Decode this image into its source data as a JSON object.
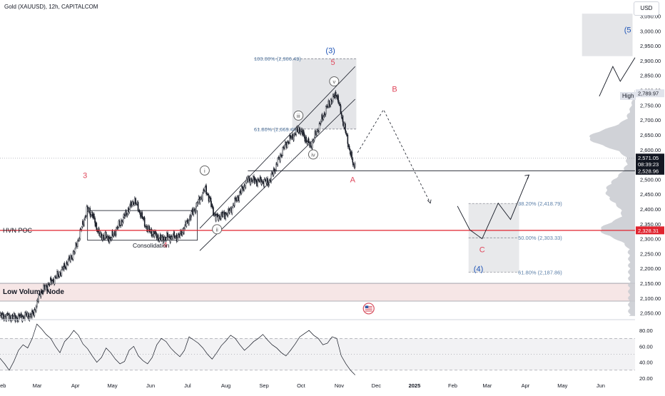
{
  "header": {
    "symbol_title": "Gold (XAUUSD), 12h, CAPITALCOM",
    "currency_button": "USD"
  },
  "labels": {
    "hvn_poc": "HVN POC",
    "low_volume_node": "Low Volume Node",
    "consolidation": "Consolidation",
    "high": "High"
  },
  "chart_data": [
    {
      "type": "candlestick",
      "title": "Gold (XAUUSD), 12h, CAPITALCOM",
      "currency": "USD",
      "x_axis": {
        "type": "date",
        "range": [
          "2024-02-01",
          "2025-06-30"
        ]
      },
      "x_ticks": [
        "Feb",
        "Mar",
        "Apr",
        "May",
        "Jun",
        "Jul",
        "Aug",
        "Sep",
        "Oct",
        "Nov",
        "Dec",
        "2025",
        "Feb",
        "Mar",
        "Apr",
        "May",
        "Jun"
      ],
      "y_ticks": [
        "3,050.00",
        "3,000.00",
        "2,950.00",
        "2,900.00",
        "2,850.00",
        "2,800.00",
        "2,750.00",
        "2,700.00",
        "2,650.00",
        "2,600.00",
        "2,550.00",
        "2,500.00",
        "2,450.00",
        "2,400.00",
        "2,350.00",
        "2,300.00",
        "2,250.00",
        "2,200.00",
        "2,150.00",
        "2,100.00",
        "2,050.00"
      ],
      "ylim": [
        2030,
        3080
      ],
      "grid": false,
      "price_path": [
        {
          "date": "2024-02-01",
          "price": 2040
        },
        {
          "date": "2024-02-15",
          "price": 2035
        },
        {
          "date": "2024-02-28",
          "price": 2045
        },
        {
          "date": "2024-03-05",
          "price": 2120
        },
        {
          "date": "2024-03-20",
          "price": 2180
        },
        {
          "date": "2024-04-01",
          "price": 2250
        },
        {
          "date": "2024-04-12",
          "price": 2400
        },
        {
          "date": "2024-04-16",
          "price": 2380
        },
        {
          "date": "2024-04-22",
          "price": 2310
        },
        {
          "date": "2024-05-01",
          "price": 2300
        },
        {
          "date": "2024-05-10",
          "price": 2360
        },
        {
          "date": "2024-05-20",
          "price": 2430
        },
        {
          "date": "2024-05-31",
          "price": 2330
        },
        {
          "date": "2024-06-10",
          "price": 2300
        },
        {
          "date": "2024-06-26",
          "price": 2310
        },
        {
          "date": "2024-07-17",
          "price": 2470
        },
        {
          "date": "2024-07-25",
          "price": 2370
        },
        {
          "date": "2024-08-05",
          "price": 2390
        },
        {
          "date": "2024-08-20",
          "price": 2500
        },
        {
          "date": "2024-09-06",
          "price": 2490
        },
        {
          "date": "2024-09-20",
          "price": 2620
        },
        {
          "date": "2024-10-01",
          "price": 2670
        },
        {
          "date": "2024-10-10",
          "price": 2610
        },
        {
          "date": "2024-10-23",
          "price": 2740
        },
        {
          "date": "2024-10-31",
          "price": 2790
        },
        {
          "date": "2024-11-05",
          "price": 2700
        },
        {
          "date": "2024-11-14",
          "price": 2540
        },
        {
          "date": "2024-11-15",
          "price": 2565
        }
      ],
      "last_price": "2,571.05",
      "countdown": "08:39:23",
      "horizontal_levels": [
        {
          "name": "HVN POC",
          "price": "2,328.31",
          "color": "#e0242f"
        },
        {
          "name": "support",
          "price": "2,528.96",
          "color": "#131722"
        },
        {
          "name": "High",
          "price": "2,789.97",
          "color": "#131722"
        }
      ],
      "low_volume_node_zone": [
        2090,
        2150
      ],
      "fib_levels": [
        {
          "label": "100.00% (2,906.49)",
          "price": 2906.49
        },
        {
          "label": "61.80% (2,669.46)",
          "price": 2669.46
        },
        {
          "label": "38.20% (2,418.79)",
          "price": 2418.79
        },
        {
          "label": "50.00% (2,303.33)",
          "price": 2303.33
        },
        {
          "label": "61.80% (2,187.86)",
          "price": 2187.86
        }
      ],
      "wave_labels": [
        {
          "text": "3",
          "color": "#e0475b"
        },
        {
          "text": "4",
          "color": "#e0475b"
        },
        {
          "text": "5",
          "color": "#e0475b"
        },
        {
          "text": "(3)",
          "color": "#1e54b7"
        },
        {
          "text": "(4)",
          "color": "#1e54b7"
        },
        {
          "text": "(5",
          "color": "#1e54b7"
        },
        {
          "text": "A",
          "color": "#e0475b"
        },
        {
          "text": "B",
          "color": "#e0475b"
        },
        {
          "text": "C",
          "color": "#e0475b"
        },
        {
          "text": "i",
          "color": "#555555"
        },
        {
          "text": "ii",
          "color": "#555555"
        },
        {
          "text": "iii",
          "color": "#555555"
        },
        {
          "text": "iv",
          "color": "#555555"
        },
        {
          "text": "v",
          "color": "#555555"
        }
      ],
      "projection_path": [
        {
          "date": "2024-11-17",
          "price": 2590
        },
        {
          "date": "2024-12-08",
          "price": 2735
        },
        {
          "date": "2025-01-15",
          "price": 2420
        }
      ],
      "zigzag_path": [
        {
          "date": "2025-02-06",
          "price": 2410
        },
        {
          "date": "2025-02-16",
          "price": 2330
        },
        {
          "date": "2025-02-26",
          "price": 2300
        },
        {
          "date": "2025-03-11",
          "price": 2420
        },
        {
          "date": "2025-03-21",
          "price": 2365
        },
        {
          "date": "2025-04-05",
          "price": 2515
        }
      ],
      "upper_zigzag_path": [
        {
          "date": "2025-06-01",
          "price": 2780
        },
        {
          "date": "2025-06-12",
          "price": 2880
        },
        {
          "date": "2025-06-18",
          "price": 2830
        },
        {
          "date": "2025-06-30",
          "price": 2910
        }
      ]
    },
    {
      "type": "line",
      "title": "",
      "y_ticks": [
        "80.00",
        "60.00",
        "40.00",
        "20.00"
      ],
      "ylim": [
        20,
        90
      ],
      "band": [
        30,
        70
      ],
      "values": [
        45,
        38,
        30,
        41,
        55,
        62,
        58,
        70,
        88,
        82,
        75,
        70,
        60,
        52,
        66,
        72,
        80,
        74,
        63,
        57,
        48,
        40,
        46,
        58,
        52,
        44,
        38,
        41,
        55,
        60,
        48,
        42,
        38,
        46,
        62,
        70,
        66,
        58,
        52,
        47,
        55,
        72,
        68,
        64,
        58,
        50,
        44,
        52,
        61,
        67,
        74,
        70,
        62,
        55,
        60,
        66,
        70,
        75,
        68,
        62,
        58,
        52,
        48,
        55,
        63,
        72,
        76,
        80,
        74,
        70,
        62,
        64,
        72,
        70,
        48,
        38,
        30,
        24
      ]
    }
  ]
}
